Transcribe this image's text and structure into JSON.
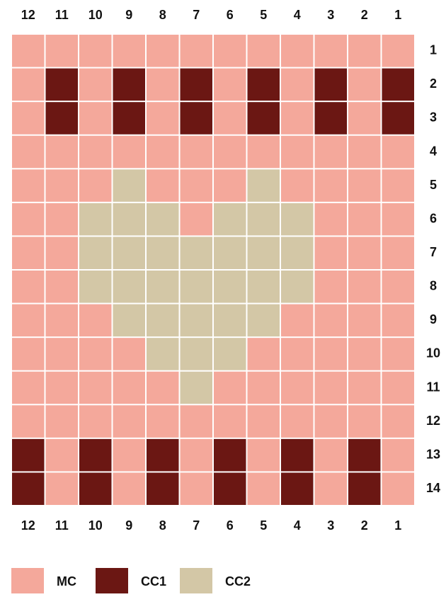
{
  "chart": {
    "column_labels": [
      "12",
      "11",
      "10",
      "9",
      "8",
      "7",
      "6",
      "5",
      "4",
      "3",
      "2",
      "1"
    ],
    "row_labels": [
      "1",
      "2",
      "3",
      "4",
      "5",
      "6",
      "7",
      "8",
      "9",
      "10",
      "11",
      "12",
      "13",
      "14"
    ],
    "legend": [
      {
        "name": "MC",
        "color": "#f4a89b"
      },
      {
        "name": "CC1",
        "color": "#6b1713"
      },
      {
        "name": "CC2",
        "color": "#d3c7a6"
      }
    ],
    "rows": [
      [
        0,
        0,
        0,
        0,
        0,
        0,
        0,
        0,
        0,
        0,
        0,
        0
      ],
      [
        0,
        1,
        0,
        1,
        0,
        1,
        0,
        1,
        0,
        1,
        0,
        1
      ],
      [
        0,
        1,
        0,
        1,
        0,
        1,
        0,
        1,
        0,
        1,
        0,
        1
      ],
      [
        0,
        0,
        0,
        0,
        0,
        0,
        0,
        0,
        0,
        0,
        0,
        0
      ],
      [
        0,
        0,
        0,
        2,
        0,
        0,
        0,
        2,
        0,
        0,
        0,
        0
      ],
      [
        0,
        0,
        2,
        2,
        2,
        0,
        2,
        2,
        2,
        0,
        0,
        0
      ],
      [
        0,
        0,
        2,
        2,
        2,
        2,
        2,
        2,
        2,
        0,
        0,
        0
      ],
      [
        0,
        0,
        2,
        2,
        2,
        2,
        2,
        2,
        2,
        0,
        0,
        0
      ],
      [
        0,
        0,
        0,
        2,
        2,
        2,
        2,
        2,
        0,
        0,
        0,
        0
      ],
      [
        0,
        0,
        0,
        0,
        2,
        2,
        2,
        0,
        0,
        0,
        0,
        0
      ],
      [
        0,
        0,
        0,
        0,
        0,
        2,
        0,
        0,
        0,
        0,
        0,
        0
      ],
      [
        0,
        0,
        0,
        0,
        0,
        0,
        0,
        0,
        0,
        0,
        0,
        0
      ],
      [
        1,
        0,
        1,
        0,
        1,
        0,
        1,
        0,
        1,
        0,
        1,
        0
      ],
      [
        1,
        0,
        1,
        0,
        1,
        0,
        1,
        0,
        1,
        0,
        1,
        0
      ]
    ]
  }
}
